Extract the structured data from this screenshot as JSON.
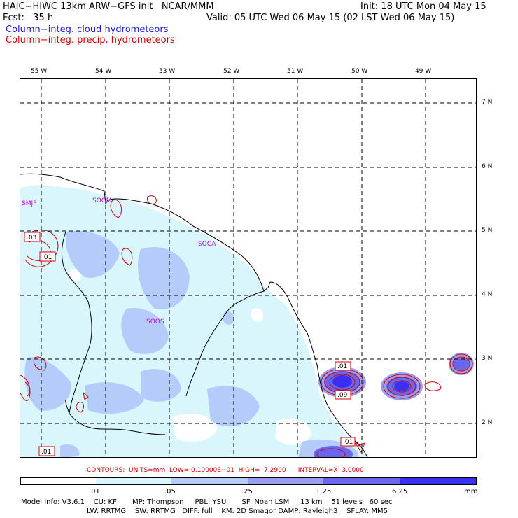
{
  "header": {
    "title_left": "HAIC−HIWC 13km ARW−GFS init   NCAR/MMM",
    "fcst": "Fcst:   35 h",
    "init": "Init: 18 UTC Mon 04 May 15",
    "valid": "Valid: 05 UTC Wed 06 May 15 (02 LST Wed 06 May 15)",
    "field1": "Column−integ. cloud hydrometeors",
    "field2": "Column−integ. precip. hydrometeors"
  },
  "map": {
    "lon_labels": [
      "55 W",
      "54 W",
      "53 W",
      "52 W",
      "51 W",
      "50 W",
      "49 W"
    ],
    "lat_labels": [
      "7 N",
      "6 N",
      "5 N",
      "4 N",
      "3 N",
      "2 N"
    ],
    "stations": [
      "SMJP",
      "SOGM",
      "SOCA",
      "SOOS"
    ],
    "contour_labels": [
      ".03",
      ".01",
      ".01",
      ".01",
      ".09",
      ".01"
    ]
  },
  "contours_info": {
    "text": "CONTOURS:  UNITS=mm  LOW= 0.10000E−01  HIGH=  7.2900      INTERVAL=X  3.0000"
  },
  "colorbar": {
    "ticks": [
      ".01",
      ".05",
      ".25",
      "1.25",
      "6.25"
    ],
    "units": "mm",
    "colors": [
      "#ffffff",
      "#d8f6fc",
      "#b5ccfa",
      "#9a9ef0",
      "#6a66f0",
      "#3a30f2",
      "#1414e8"
    ]
  },
  "model_info": {
    "line1": "Model Info: V3.6.1    CU: KF       MP: Thompson     PBL: YSU       SF: Noah LSM     13 km    51 levels   60 sec",
    "line2": "LW: RRTMG    SW: RRTMG   DIFF: full    KM: 2D Smagor DAMP: Rayleigh3    SFLAY: MM5"
  }
}
